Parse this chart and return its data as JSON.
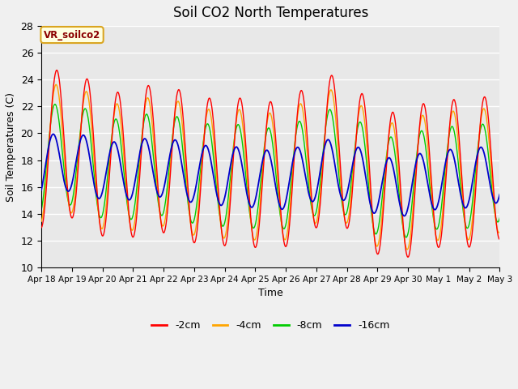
{
  "title": "Soil CO2 North Temperatures",
  "xlabel": "Time",
  "ylabel": "Soil Temperatures (C)",
  "ylim": [
    10,
    28
  ],
  "yticks": [
    10,
    12,
    14,
    16,
    18,
    20,
    22,
    24,
    26,
    28
  ],
  "plot_bg_color": "#e8e8e8",
  "fig_bg_color": "#f0f0f0",
  "line_colors": {
    "-2cm": "#ff0000",
    "-4cm": "#ffa500",
    "-8cm": "#00cc00",
    "-16cm": "#0000cc"
  },
  "legend_label": "VR_soilco2",
  "x_tick_labels": [
    "Apr 18",
    "Apr 19",
    "Apr 20",
    "Apr 21",
    "Apr 22",
    "Apr 23",
    "Apr 24",
    "Apr 25",
    "Apr 26",
    "Apr 27",
    "Apr 28",
    "Apr 29",
    "Apr 30",
    "May 1",
    "May 2",
    "May 3"
  ],
  "n_days": 15,
  "points_per_day": 96
}
